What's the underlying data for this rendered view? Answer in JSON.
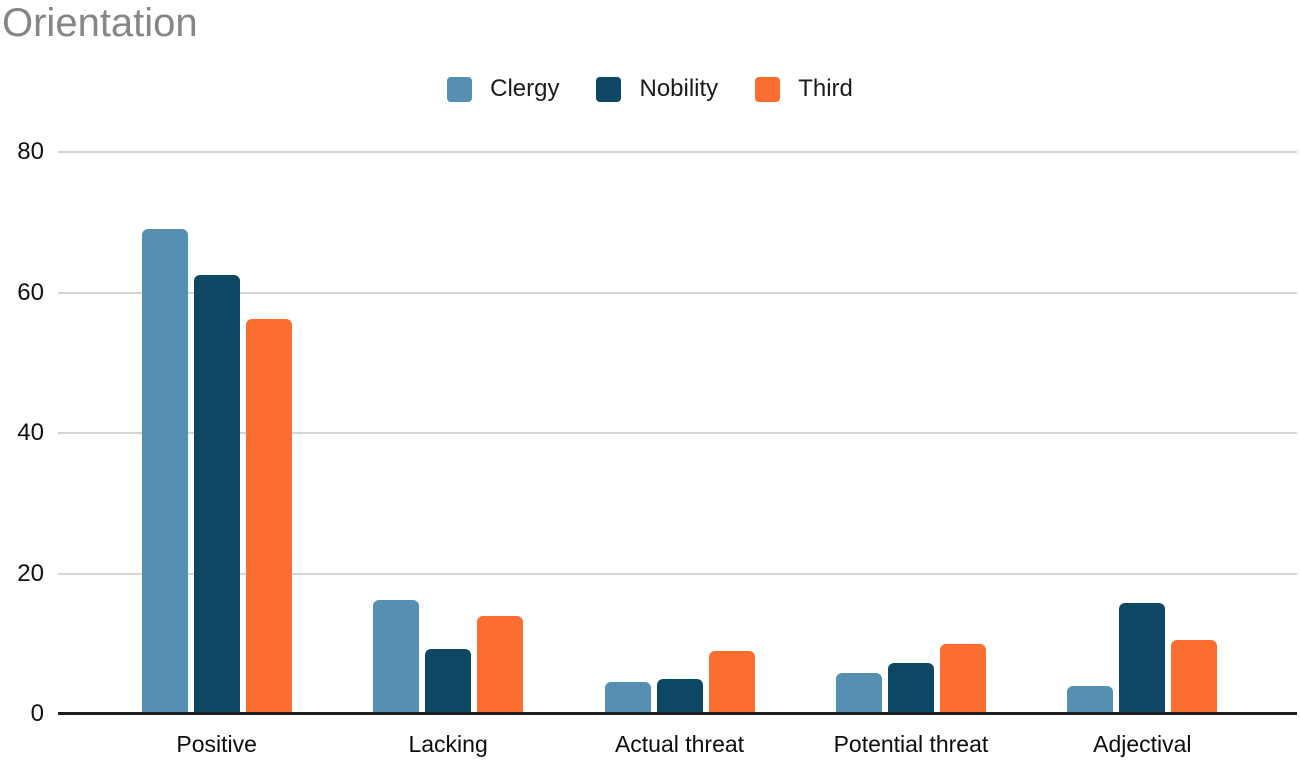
{
  "title": "Orientation",
  "colors": {
    "background": "#ffffff",
    "title_text": "#868686",
    "axis_text": "#111111",
    "gridline": "#d6d6d6",
    "baseline": "#1f1f1f",
    "clergy": "#5590b0",
    "nobility": "#0d4763",
    "third": "#fc6e30"
  },
  "chart_data": {
    "type": "bar",
    "title": "Orientation",
    "categories": [
      "Positive",
      "Lacking",
      "Actual threat",
      "Potential threat",
      "Adjectival"
    ],
    "series": [
      {
        "name": "Clergy",
        "color": "#5590b0",
        "values": [
          69.0,
          16.2,
          4.6,
          5.9,
          4.0
        ]
      },
      {
        "name": "Nobility",
        "color": "#0d4763",
        "values": [
          62.5,
          9.3,
          5.0,
          7.2,
          15.8
        ]
      },
      {
        "name": "Third",
        "color": "#fc6e30",
        "values": [
          56.2,
          13.9,
          8.9,
          9.9,
          10.5
        ]
      }
    ],
    "xlabel": "",
    "ylabel": "",
    "ylim": [
      0,
      80
    ],
    "yticks": [
      0,
      20,
      40,
      60,
      80
    ],
    "grid": true,
    "legend_position": "top-center"
  }
}
